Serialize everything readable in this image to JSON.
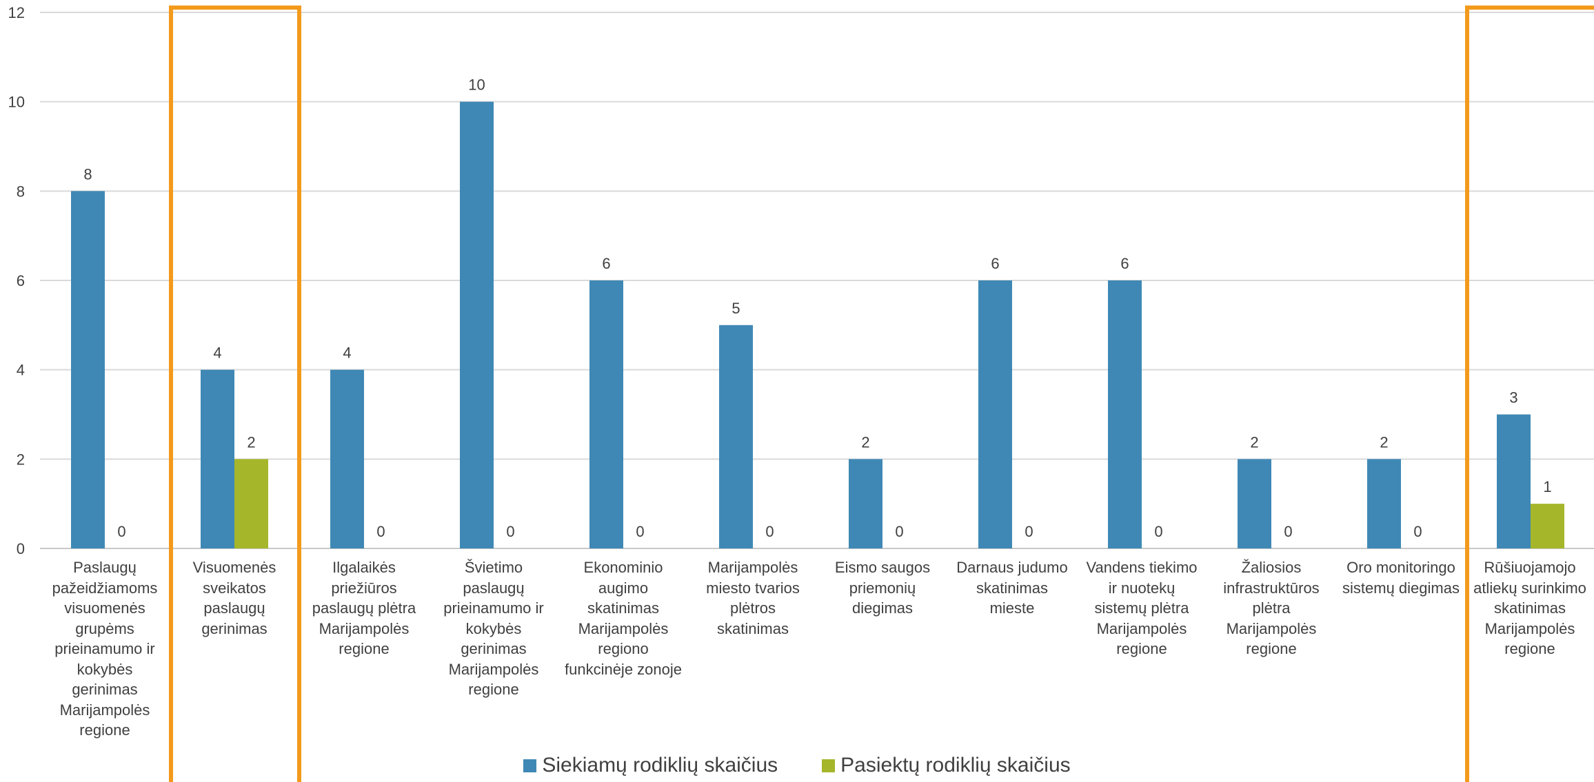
{
  "chart_data": {
    "type": "bar",
    "categories": [
      "Paslaugų\npažeidžiamoms\nvisuomenės\ngrupėms\nprieinamumo ir\nkokybės\ngerinimas\nMarijampolės\nregione",
      "Visuomenės\nsveikatos\npaslaugų\ngerinimas",
      "Ilgalaikės\npriežiūros\npaslaugų plėtra\nMarijampolės\nregione",
      "Švietimo\npaslaugų\nprieinamumo ir\nkokybės\ngerinimas\nMarijampolės\nregione",
      "Ekonominio\naugimo\nskatinimas\nMarijampolės\nregiono\nfunkcinėje zonoje",
      "Marijampolės\nmiesto tvarios\nplėtros\nskatinimas",
      "Eismo saugos\npriemonių\ndiegimas",
      "Darnaus judumo\nskatinimas\nmieste",
      "Vandens tiekimo\nir nuotekų\nsistemų plėtra\nMarijampolės\nregione",
      "Žaliosios\ninfrastruktūros\nplėtra\nMarijampolės\nregione",
      "Oro monitoringo\nsistemų diegimas",
      "Rūšiuojamojo\natliekų surinkimo\nskatinimas\nMarijampolės\nregione"
    ],
    "series": [
      {
        "name": "Siekiamų rodiklių skaičius",
        "color": "#3f88b5",
        "values": [
          8,
          4,
          4,
          10,
          6,
          5,
          2,
          6,
          6,
          2,
          2,
          3
        ]
      },
      {
        "name": "Pasiektų rodiklių skaičius",
        "color": "#a5b62a",
        "values": [
          0,
          2,
          0,
          0,
          0,
          0,
          0,
          0,
          0,
          0,
          0,
          1
        ]
      }
    ],
    "yticks": [
      "0",
      "2",
      "4",
      "6",
      "8",
      "10",
      "12"
    ],
    "ylim": [
      0,
      12
    ],
    "grid": true,
    "legend_position": "bottom",
    "highlighted_categories": [
      1,
      11
    ],
    "highlight_color": "#f39a1c"
  }
}
